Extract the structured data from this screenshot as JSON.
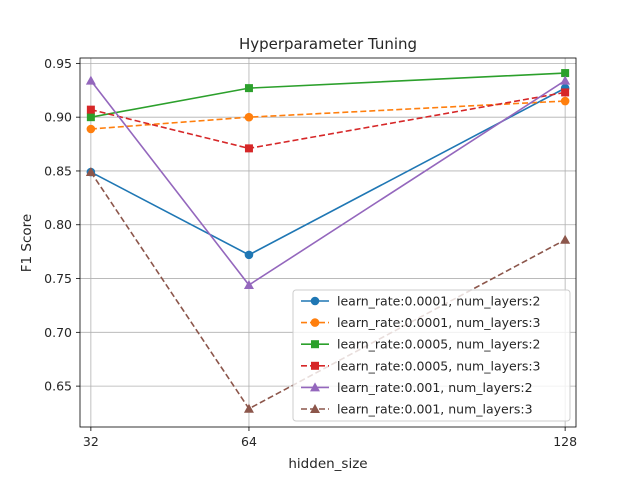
{
  "chart_data": {
    "type": "line",
    "title": "Hyperparameter Tuning",
    "xlabel": "hidden_size",
    "ylabel": "F1 Score",
    "x": [
      32,
      64,
      128
    ],
    "x_ticks": [
      "32",
      "64",
      "128"
    ],
    "xlim": [
      29.8,
      130.2
    ],
    "ylim": [
      0.612,
      0.955
    ],
    "y_ticks": [
      "0.65",
      "0.70",
      "0.75",
      "0.80",
      "0.85",
      "0.90",
      "0.95"
    ],
    "grid": true,
    "legend_position": "lower-right",
    "series": [
      {
        "name": "learn_rate:0.0001, num_layers:2",
        "values": [
          0.849,
          0.772,
          0.927
        ],
        "color": "#1f77b4",
        "linestyle": "solid",
        "marker": "circle"
      },
      {
        "name": "learn_rate:0.0001, num_layers:3",
        "values": [
          0.889,
          0.9,
          0.915
        ],
        "color": "#ff7f0e",
        "linestyle": "dashed",
        "marker": "circle"
      },
      {
        "name": "learn_rate:0.0005, num_layers:2",
        "values": [
          0.9,
          0.927,
          0.941
        ],
        "color": "#2ca02c",
        "linestyle": "solid",
        "marker": "square"
      },
      {
        "name": "learn_rate:0.0005, num_layers:3",
        "values": [
          0.907,
          0.871,
          0.923
        ],
        "color": "#d62728",
        "linestyle": "dashed",
        "marker": "square"
      },
      {
        "name": "learn_rate:0.001, num_layers:2",
        "values": [
          0.934,
          0.744,
          0.934
        ],
        "color": "#9467bd",
        "linestyle": "solid",
        "marker": "triangle"
      },
      {
        "name": "learn_rate:0.001, num_layers:3",
        "values": [
          0.849,
          0.629,
          0.786
        ],
        "color": "#8c564b",
        "linestyle": "dashed",
        "marker": "triangle"
      }
    ]
  }
}
